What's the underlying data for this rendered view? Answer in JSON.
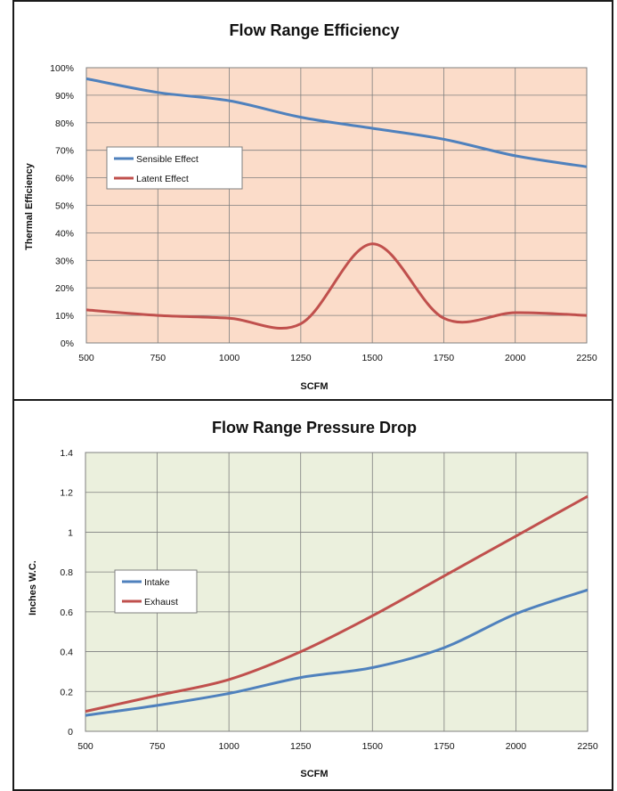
{
  "chart_data": [
    {
      "type": "line",
      "title": "Flow Range Efficiency",
      "xlabel": "SCFM",
      "ylabel": "Thermal Efficiency",
      "x_ticks": [
        "500",
        "750",
        "1000",
        "1250",
        "1500",
        "1750",
        "2000",
        "2250"
      ],
      "y_ticks": [
        "0%",
        "10%",
        "20%",
        "30%",
        "40%",
        "50%",
        "60%",
        "70%",
        "80%",
        "90%",
        "100%"
      ],
      "xlim": [
        500,
        2250
      ],
      "ylim": [
        0,
        100
      ],
      "grid": true,
      "plot_background": "#fbdcc9",
      "legend_position": "left-middle",
      "series": [
        {
          "name": "Sensible Effect",
          "color": "#4f81bd",
          "x": [
            500,
            750,
            1000,
            1250,
            1500,
            1750,
            2000,
            2250
          ],
          "y": [
            96,
            91,
            88,
            82,
            78,
            74,
            68,
            64
          ]
        },
        {
          "name": "Latent Effect",
          "color": "#c0504d",
          "x": [
            500,
            750,
            1000,
            1250,
            1500,
            1750,
            2000,
            2250
          ],
          "y": [
            12,
            10,
            9,
            7,
            36,
            9,
            11,
            10
          ]
        }
      ]
    },
    {
      "type": "line",
      "title": "Flow Range Pressure Drop",
      "xlabel": "SCFM",
      "ylabel": "Inches W.C.",
      "x_ticks": [
        "500",
        "750",
        "1000",
        "1250",
        "1500",
        "1750",
        "2000",
        "2250"
      ],
      "y_ticks": [
        "0",
        "0.2",
        "0.4",
        "0.6",
        "0.8",
        "1",
        "1.2",
        "1.4"
      ],
      "xlim": [
        500,
        2250
      ],
      "ylim": [
        0,
        1.4
      ],
      "grid": true,
      "plot_background": "#ebf0dd",
      "legend_position": "left-middle",
      "series": [
        {
          "name": "Intake",
          "color": "#4f81bd",
          "x": [
            500,
            750,
            1000,
            1250,
            1500,
            1750,
            2000,
            2250
          ],
          "y": [
            0.08,
            0.13,
            0.19,
            0.27,
            0.32,
            0.42,
            0.59,
            0.71
          ]
        },
        {
          "name": "Exhaust",
          "color": "#c0504d",
          "x": [
            500,
            750,
            1000,
            1250,
            1500,
            1750,
            2000,
            2250
          ],
          "y": [
            0.1,
            0.18,
            0.26,
            0.4,
            0.58,
            0.78,
            0.98,
            1.18
          ]
        }
      ]
    }
  ]
}
